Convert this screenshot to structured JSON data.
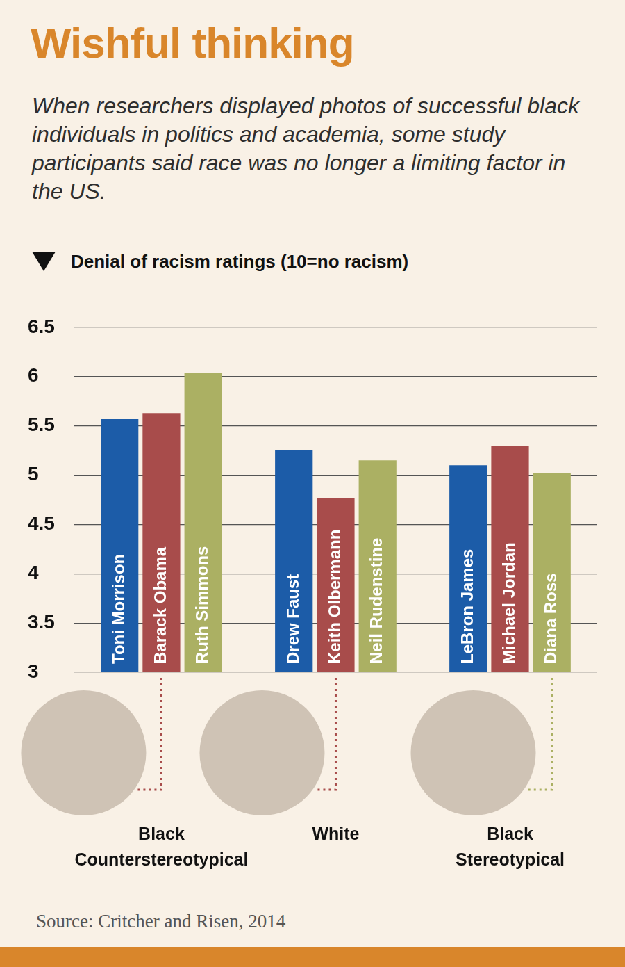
{
  "chart_data": {
    "type": "bar",
    "title": "Wishful thinking",
    "subtitle": "When researchers displayed photos of successful black individuals in politics and academia, some study participants said race was no longer a limiting factor in the US.",
    "y_label": "Denial of racism ratings (10=no racism)",
    "categories": [
      "Black Counterstereotypical",
      "White",
      "Black Stereotypical"
    ],
    "series": [
      {
        "color": "#1c5ca8",
        "values": [
          5.57,
          5.25,
          5.1
        ],
        "bar_labels": [
          "Toni Morrison",
          "Drew Faust",
          "LeBron James"
        ]
      },
      {
        "color": "#a84c4b",
        "values": [
          5.63,
          4.77,
          5.3
        ],
        "bar_labels": [
          "Barack Obama",
          "Keith Olbermann",
          "Michael Jordan"
        ]
      },
      {
        "color": "#abb063",
        "values": [
          6.04,
          5.15,
          5.02
        ],
        "bar_labels": [
          "Ruth Simmons",
          "Neil Rudenstine",
          "Diana Ross"
        ]
      }
    ],
    "ylim": [
      3,
      6.5
    ],
    "yticks": [
      3,
      3.5,
      4,
      4.5,
      5,
      5.5,
      6,
      6.5
    ],
    "grid": true,
    "tick_labels": "y",
    "source": "Source: Critcher and Risen, 2014"
  }
}
